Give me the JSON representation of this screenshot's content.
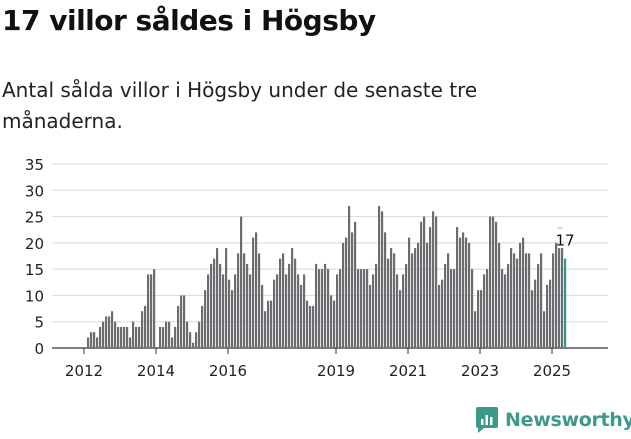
{
  "title": "17 villor såldes i Högsby",
  "subtitle": "Antal sålda villor i Högsby under de senaste tre månaderna.",
  "brand": {
    "name": "Newsworthy",
    "icon": "newsworthy-logo-icon",
    "color": "#3d9a8b"
  },
  "chart_data": {
    "type": "bar",
    "title": "17 villor såldes i Högsby",
    "subtitle": "Antal sålda villor i Högsby under de senaste tre månaderna.",
    "xlabel": "",
    "ylabel": "",
    "ylim": [
      0,
      35
    ],
    "yticks": [
      "0",
      "5",
      "10",
      "15",
      "20",
      "25",
      "30",
      "35"
    ],
    "xticks": [
      {
        "label": "2012",
        "year": 2012
      },
      {
        "label": "2014",
        "year": 2014
      },
      {
        "label": "2016",
        "year": 2016
      },
      {
        "label": "2019",
        "year": 2019
      },
      {
        "label": "2021",
        "year": 2021
      },
      {
        "label": "2023",
        "year": 2023
      },
      {
        "label": "2025",
        "year": 2025
      }
    ],
    "start": {
      "year": 2012,
      "month": 1
    },
    "grid": true,
    "bar_color": "#6b6b70",
    "highlight_color": "#2e9a8c",
    "last_label": "17",
    "values": [
      0,
      2,
      3,
      3,
      2,
      4,
      5,
      6,
      6,
      7,
      5,
      4,
      4,
      4,
      4,
      2,
      5,
      4,
      4,
      7,
      8,
      14,
      14,
      15,
      0,
      4,
      4,
      5,
      5,
      2,
      4,
      8,
      10,
      10,
      5,
      3,
      1,
      3,
      5,
      8,
      11,
      14,
      16,
      17,
      19,
      16,
      14,
      19,
      13,
      11,
      14,
      18,
      25,
      18,
      16,
      14,
      21,
      22,
      18,
      12,
      7,
      9,
      9,
      13,
      14,
      17,
      18,
      14,
      16,
      19,
      17,
      14,
      12,
      14,
      9,
      8,
      8,
      16,
      15,
      15,
      16,
      15,
      10,
      9,
      14,
      15,
      20,
      21,
      27,
      22,
      24,
      15,
      15,
      15,
      15,
      12,
      14,
      16,
      27,
      26,
      22,
      17,
      19,
      18,
      14,
      11,
      14,
      16,
      21,
      18,
      19,
      20,
      24,
      25,
      20,
      23,
      26,
      25,
      12,
      13,
      16,
      18,
      15,
      15,
      23,
      21,
      22,
      21,
      20,
      15,
      7,
      11,
      11,
      14,
      15,
      25,
      25,
      24,
      20,
      15,
      14,
      16,
      19,
      18,
      17,
      20,
      21,
      18,
      18,
      11,
      13,
      16,
      18,
      7,
      12,
      13,
      18,
      20,
      19,
      19,
      17
    ]
  }
}
